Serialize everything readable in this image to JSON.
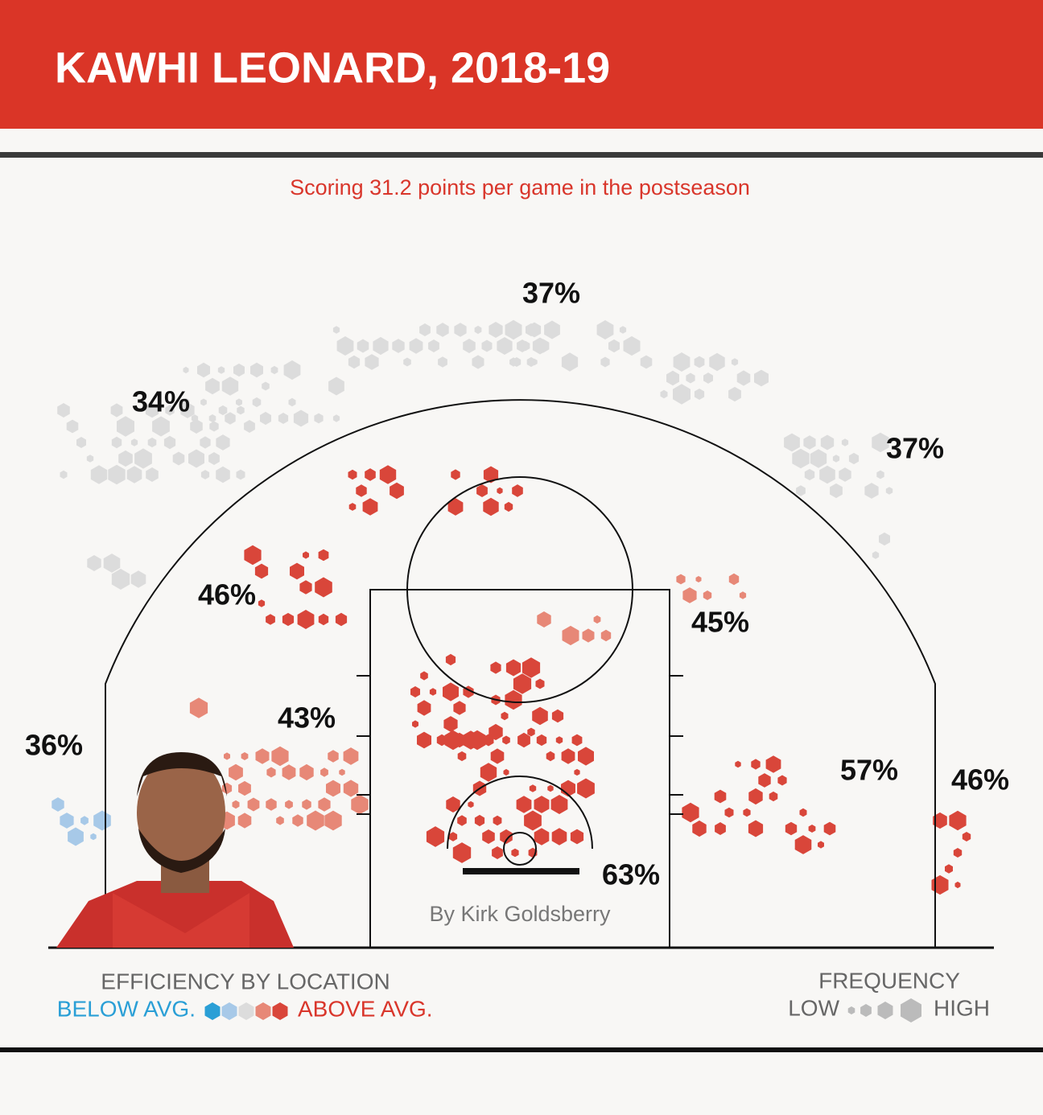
{
  "chart_data": {
    "type": "shot-chart",
    "title": "KAWHI LEONARD, 2018-19",
    "subtitle": "Scoring 31.2 points per game in the postseason",
    "byline": "By Kirk Goldsberry",
    "values": [
      37,
      34,
      37,
      46,
      45,
      43,
      36,
      57,
      46,
      63
    ],
    "value_labels": [
      "37%",
      "34%",
      "37%",
      "46%",
      "45%",
      "43%",
      "36%",
      "57%",
      "46%",
      "63%"
    ],
    "legend": {
      "efficiency_title": "EFFICIENCY BY LOCATION",
      "below": "BELOW AVG.",
      "above": "ABOVE AVG.",
      "frequency_title": "FREQUENCY",
      "low": "LOW",
      "high": "HIGH"
    }
  }
}
